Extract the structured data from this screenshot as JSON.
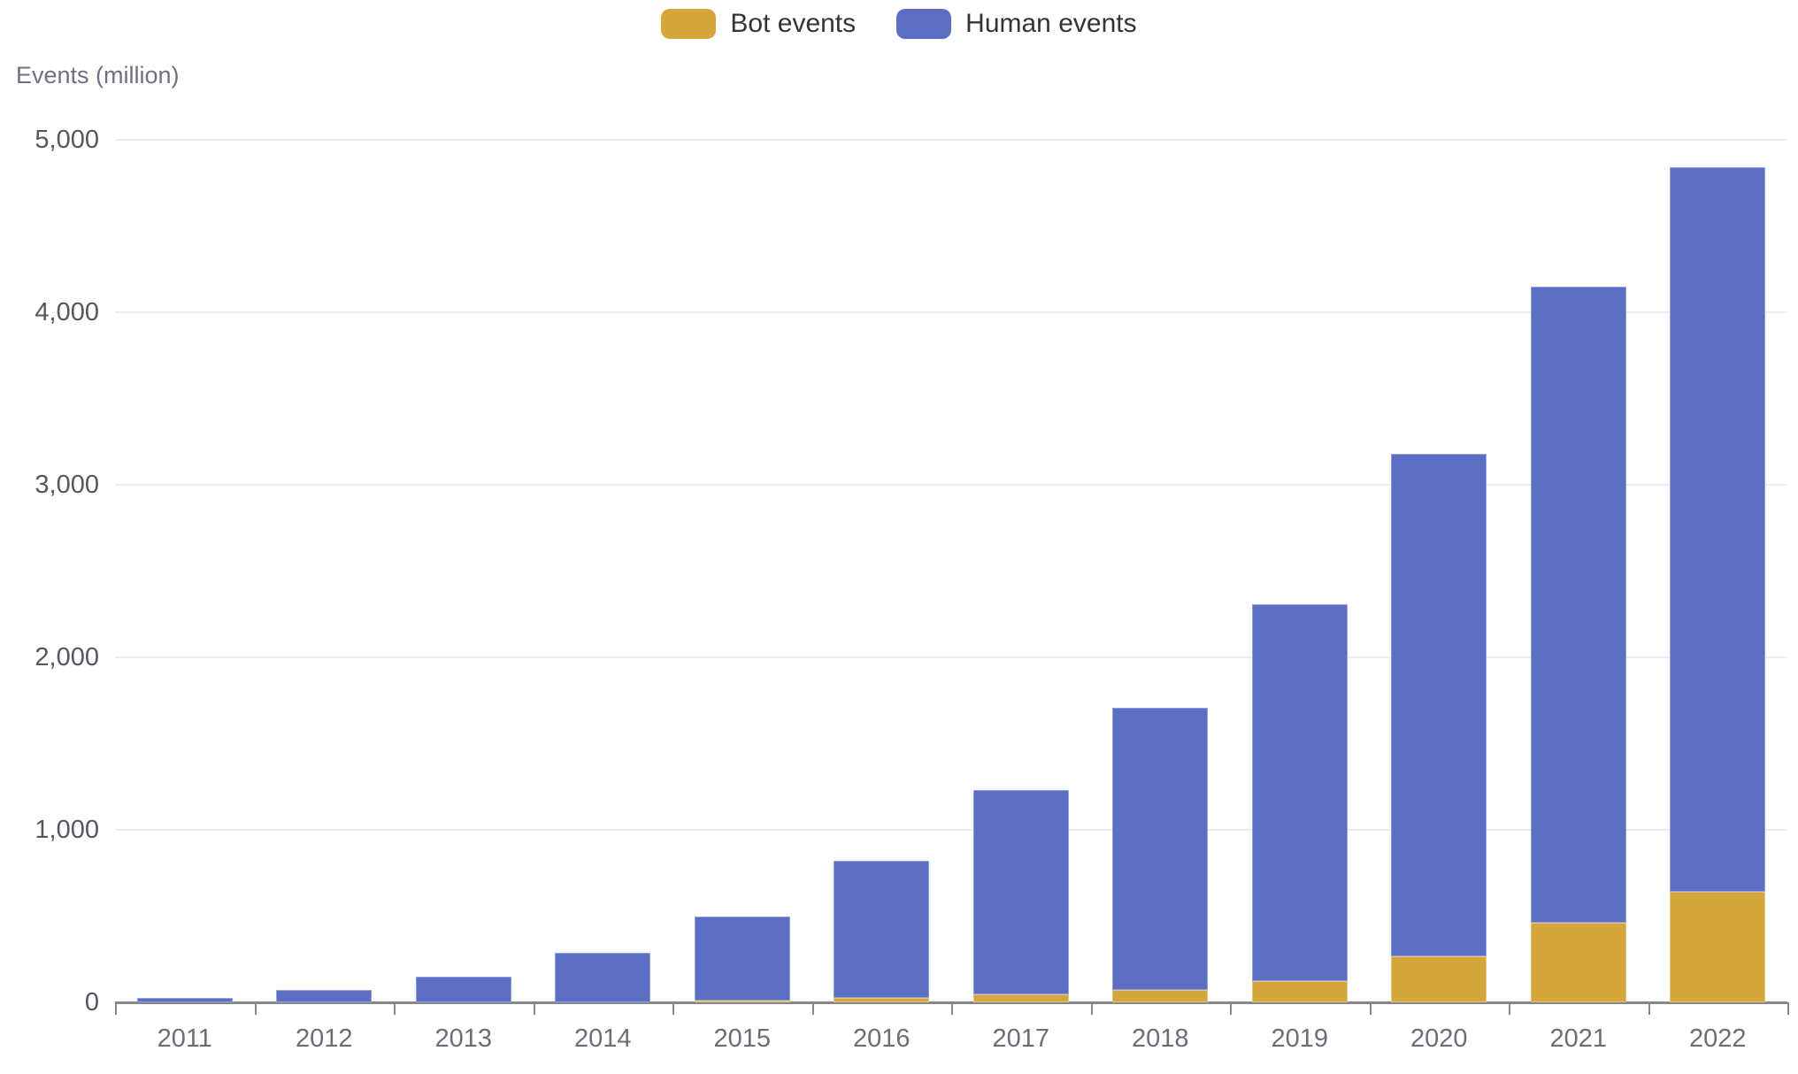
{
  "legend": {
    "items": [
      {
        "label": "Bot events",
        "color": "#d5a63c"
      },
      {
        "label": "Human events",
        "color": "#5b6ec4"
      }
    ]
  },
  "y_axis_title": "Events (million)",
  "chart_data": {
    "type": "bar",
    "stacked": true,
    "title": "",
    "ylabel": "Events (million)",
    "xlabel": "",
    "ylim": [
      0,
      5000
    ],
    "grid": true,
    "legend_position": "top-center",
    "categories": [
      "2011",
      "2012",
      "2013",
      "2014",
      "2015",
      "2016",
      "2017",
      "2018",
      "2019",
      "2020",
      "2021",
      "2022"
    ],
    "series": [
      {
        "name": "Bot events",
        "color": "#d5a63c",
        "values": [
          0,
          0,
          0,
          0,
          10,
          25,
          45,
          70,
          125,
          265,
          460,
          640
        ]
      },
      {
        "name": "Human events",
        "color": "#5b6ec4",
        "values": [
          25,
          70,
          150,
          285,
          490,
          795,
          1185,
          1640,
          2185,
          2915,
          3690,
          4200
        ]
      }
    ],
    "totals": [
      25,
      70,
      150,
      285,
      500,
      820,
      1230,
      1710,
      2310,
      3180,
      4150,
      4840
    ],
    "yticks": {
      "labels": [
        "5,000",
        "4,000",
        "3,000",
        "2,000",
        "1,000",
        "0"
      ],
      "values": [
        5000,
        4000,
        3000,
        2000,
        1000,
        0
      ]
    }
  }
}
